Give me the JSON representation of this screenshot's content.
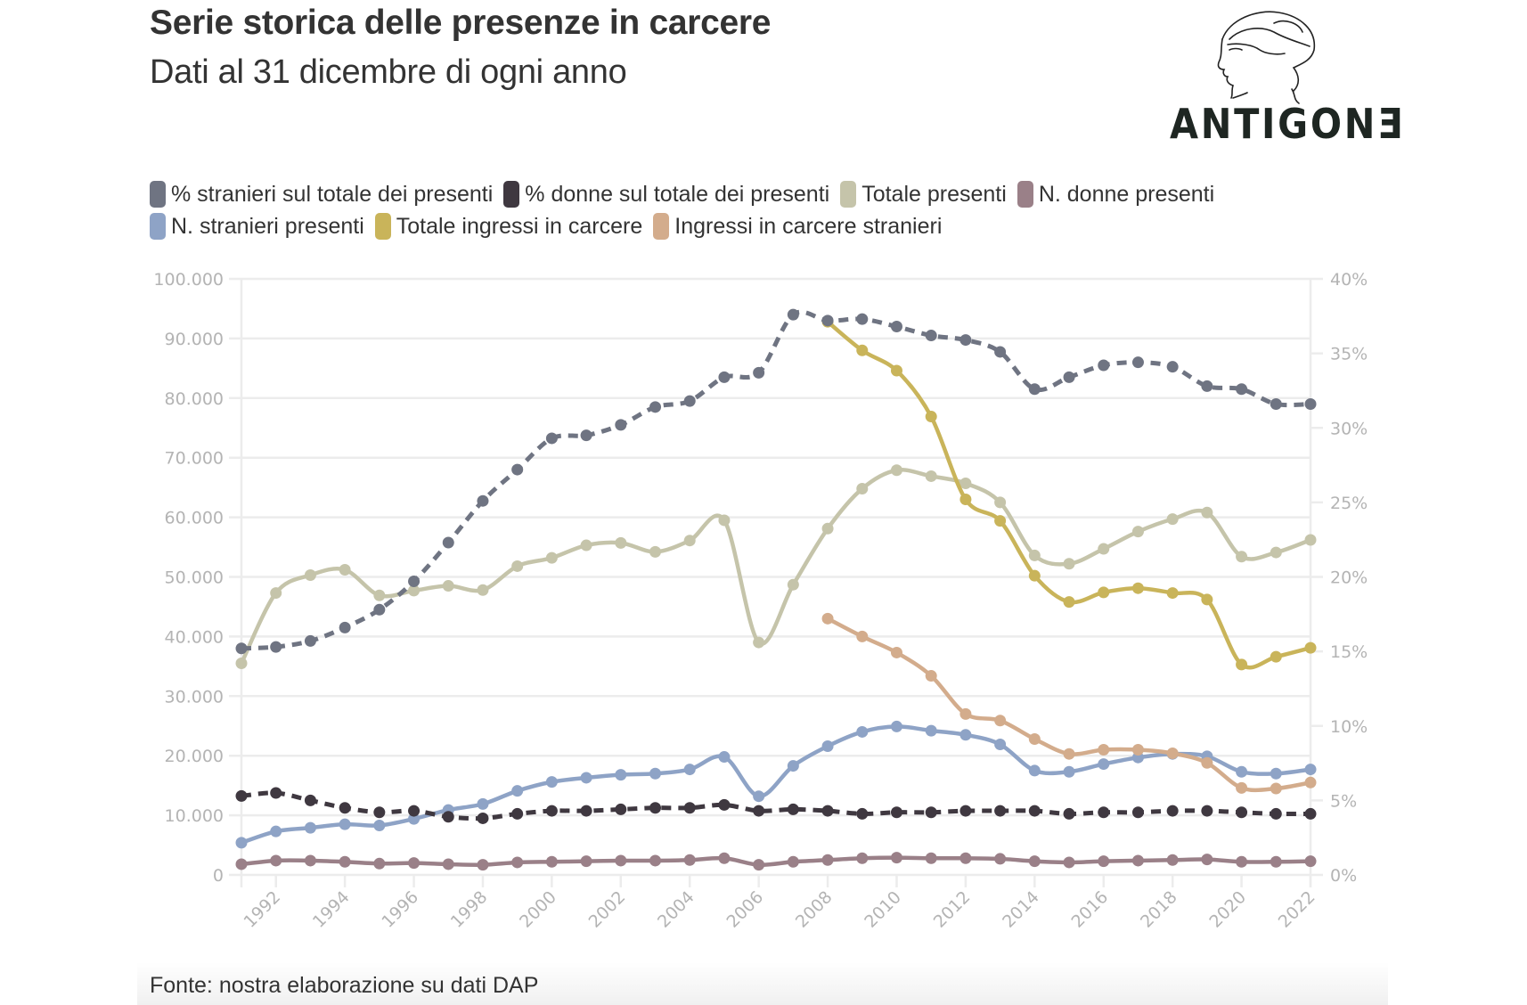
{
  "header": {
    "title": "Serie storica delle presenze in carcere",
    "subtitle": "Dati al 31 dicembre di ogni anno",
    "logo_text": "ANTIGONƎ"
  },
  "footer": {
    "source": "Fonte: nostra elaborazione su dati DAP"
  },
  "chart_data": {
    "type": "line",
    "title": "Serie storica delle presenze in carcere",
    "subtitle": "Dati al 31 dicembre di ogni anno",
    "xlabel": "",
    "ylabel": "",
    "x": [
      1991,
      1992,
      1993,
      1994,
      1995,
      1996,
      1997,
      1998,
      1999,
      2000,
      2001,
      2002,
      2003,
      2004,
      2005,
      2006,
      2007,
      2008,
      2009,
      2010,
      2011,
      2012,
      2013,
      2014,
      2015,
      2016,
      2017,
      2018,
      2019,
      2020,
      2021,
      2022
    ],
    "x_tick_labels": [
      "1992",
      "1994",
      "1996",
      "1998",
      "2000",
      "2002",
      "2004",
      "2006",
      "2008",
      "2010",
      "2012",
      "2014",
      "2016",
      "2018",
      "2020",
      "2022"
    ],
    "y_left": {
      "range": [
        0,
        100000
      ],
      "ticks": [
        0,
        10000,
        20000,
        30000,
        40000,
        50000,
        60000,
        70000,
        80000,
        90000,
        100000
      ],
      "tick_labels": [
        "0",
        "10.000",
        "20.000",
        "30.000",
        "40.000",
        "50.000",
        "60.000",
        "70.000",
        "80.000",
        "90.000",
        "100.000"
      ]
    },
    "y_right": {
      "range": [
        0,
        40
      ],
      "ticks": [
        0,
        5,
        10,
        15,
        20,
        25,
        30,
        35,
        40
      ],
      "tick_labels": [
        "0%",
        "5%",
        "10%",
        "15%",
        "20%",
        "25%",
        "30%",
        "35%",
        "40%"
      ]
    },
    "grid": true,
    "legend_position": "top",
    "series": [
      {
        "name": "% stranieri sul totale dei presenti",
        "color": "#6f7482",
        "axis": "right",
        "dashed": true,
        "values": [
          15.2,
          15.3,
          15.7,
          16.6,
          17.8,
          19.7,
          22.3,
          25.1,
          27.2,
          29.3,
          29.5,
          30.2,
          31.4,
          31.8,
          33.4,
          33.7,
          37.6,
          37.2,
          37.3,
          36.8,
          36.2,
          35.9,
          35.1,
          32.6,
          33.4,
          34.2,
          34.4,
          34.1,
          32.8,
          32.6,
          31.6,
          31.6
        ]
      },
      {
        "name": "% donne sul totale dei presenti",
        "color": "#3f3840",
        "axis": "right",
        "dashed": true,
        "values": [
          5.3,
          5.5,
          5.0,
          4.5,
          4.2,
          4.3,
          3.9,
          3.8,
          4.1,
          4.3,
          4.3,
          4.4,
          4.5,
          4.5,
          4.7,
          4.3,
          4.4,
          4.3,
          4.1,
          4.2,
          4.2,
          4.3,
          4.3,
          4.3,
          4.1,
          4.2,
          4.2,
          4.3,
          4.3,
          4.2,
          4.1,
          4.1
        ]
      },
      {
        "name": "Totale presenti",
        "color": "#c5c4aa",
        "axis": "left",
        "dashed": false,
        "values": [
          35500,
          47300,
          50300,
          51200,
          46900,
          47700,
          48500,
          47800,
          51800,
          53200,
          55300,
          55700,
          54200,
          56100,
          59500,
          39000,
          48700,
          58100,
          64800,
          67900,
          66900,
          65700,
          62500,
          53600,
          52200,
          54700,
          57600,
          59700,
          60800,
          53400,
          54100,
          56200
        ]
      },
      {
        "name": "N. donne presenti",
        "color": "#9a8088",
        "axis": "left",
        "dashed": false,
        "values": [
          1800,
          2400,
          2400,
          2200,
          1900,
          2000,
          1800,
          1700,
          2100,
          2200,
          2300,
          2400,
          2400,
          2500,
          2800,
          1700,
          2200,
          2500,
          2800,
          2900,
          2800,
          2800,
          2700,
          2300,
          2100,
          2300,
          2400,
          2500,
          2600,
          2200,
          2200,
          2300
        ]
      },
      {
        "name": "N. stranieri presenti",
        "color": "#8ea3c6",
        "axis": "left",
        "dashed": false,
        "values": [
          5400,
          7300,
          7900,
          8500,
          8300,
          9400,
          10900,
          11900,
          14100,
          15600,
          16300,
          16800,
          17000,
          17700,
          19800,
          13200,
          18300,
          21600,
          24000,
          24900,
          24200,
          23500,
          21900,
          17500,
          17300,
          18600,
          19700,
          20300,
          19900,
          17300,
          17000,
          17700
        ]
      },
      {
        "name": "Totale ingressi in carcere",
        "color": "#c9b45a",
        "axis": "left",
        "dashed": false,
        "values": [
          null,
          null,
          null,
          null,
          null,
          null,
          null,
          null,
          null,
          null,
          null,
          null,
          null,
          null,
          null,
          null,
          null,
          92800,
          88000,
          84600,
          76900,
          63000,
          59400,
          50200,
          45800,
          47400,
          48100,
          47300,
          46200,
          35300,
          36600,
          38100
        ]
      },
      {
        "name": "Ingressi in carcere stranieri",
        "color": "#d3ac8c",
        "axis": "left",
        "dashed": false,
        "values": [
          null,
          null,
          null,
          null,
          null,
          null,
          null,
          null,
          null,
          null,
          null,
          null,
          null,
          null,
          null,
          null,
          null,
          43000,
          40000,
          37300,
          33400,
          27000,
          25900,
          22800,
          20300,
          21000,
          21000,
          20400,
          18800,
          14600,
          14500,
          15500
        ]
      }
    ]
  }
}
